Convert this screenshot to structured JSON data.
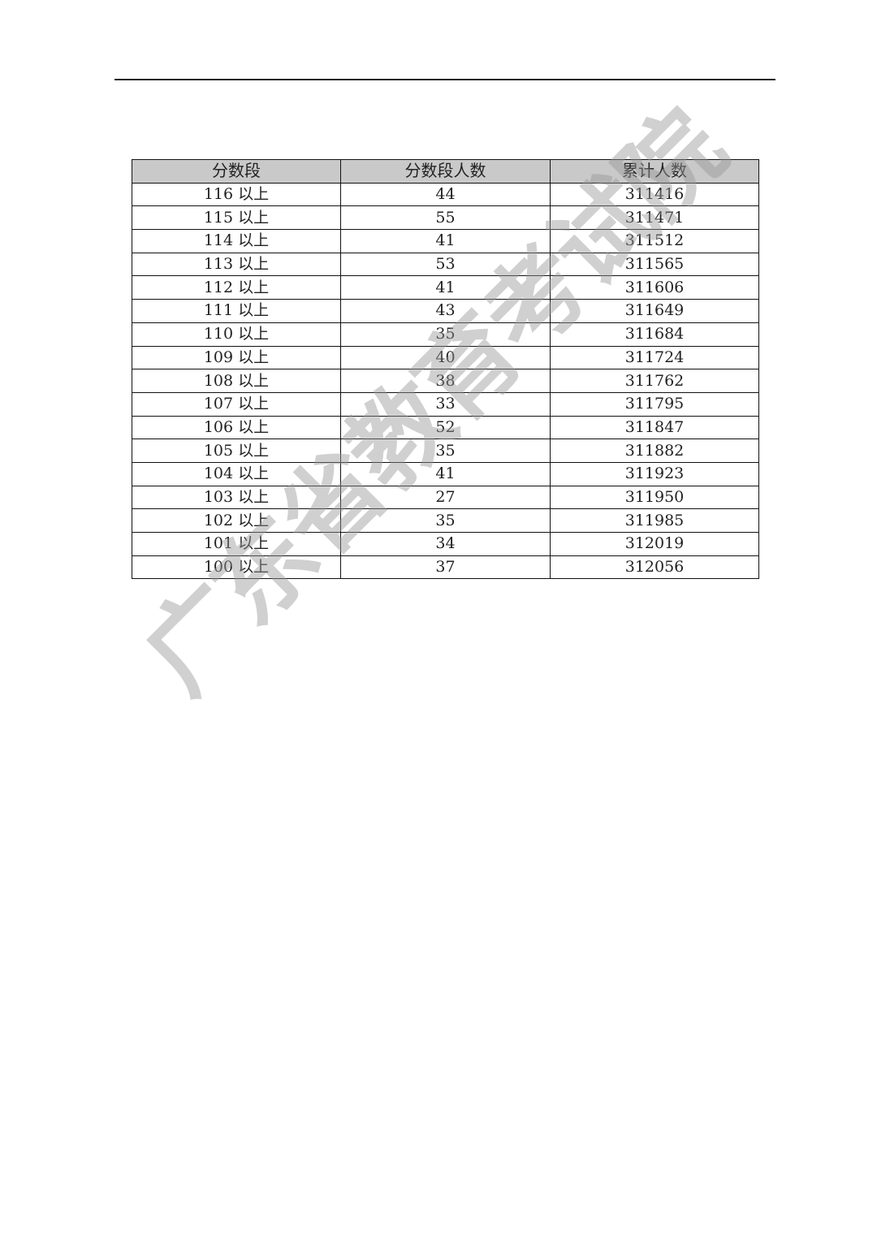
{
  "watermark": "广东省教育考试院",
  "table": {
    "headers": [
      "分数段",
      "分数段人数",
      "累计人数"
    ],
    "rows": [
      [
        "116 以上",
        "44",
        "311416"
      ],
      [
        "115 以上",
        "55",
        "311471"
      ],
      [
        "114 以上",
        "41",
        "311512"
      ],
      [
        "113 以上",
        "53",
        "311565"
      ],
      [
        "112 以上",
        "41",
        "311606"
      ],
      [
        "111 以上",
        "43",
        "311649"
      ],
      [
        "110 以上",
        "35",
        "311684"
      ],
      [
        "109 以上",
        "40",
        "311724"
      ],
      [
        "108 以上",
        "38",
        "311762"
      ],
      [
        "107 以上",
        "33",
        "311795"
      ],
      [
        "106 以上",
        "52",
        "311847"
      ],
      [
        "105 以上",
        "35",
        "311882"
      ],
      [
        "104 以上",
        "41",
        "311923"
      ],
      [
        "103 以上",
        "27",
        "311950"
      ],
      [
        "102 以上",
        "35",
        "311985"
      ],
      [
        "101 以上",
        "34",
        "312019"
      ],
      [
        "100 以上",
        "37",
        "312056"
      ]
    ]
  },
  "colors": {
    "header_bg": "#c9c9c9",
    "watermark": "#969696"
  }
}
